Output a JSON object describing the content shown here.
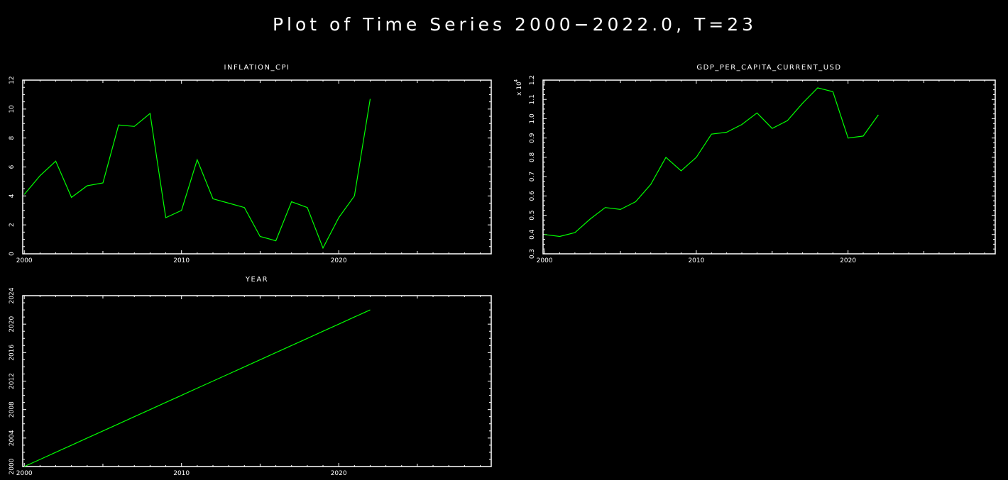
{
  "title": "Plot of Time Series 2000−2022.0, T=23",
  "chart_data": [
    {
      "type": "line",
      "title": "INFLATION_CPI",
      "xlabel": "",
      "ylabel": "",
      "xlim": [
        1999.9,
        2029.7
      ],
      "ylim": [
        0,
        12
      ],
      "xticks": [
        2000,
        2010,
        2020
      ],
      "yticks": [
        0,
        2,
        4,
        6,
        8,
        10,
        12
      ],
      "line_color": "#00ff00",
      "x": [
        2000,
        2001,
        2002,
        2003,
        2004,
        2005,
        2006,
        2007,
        2008,
        2009,
        2010,
        2011,
        2012,
        2013,
        2014,
        2015,
        2016,
        2017,
        2018,
        2019,
        2020,
        2021,
        2022
      ],
      "values": [
        4.1,
        5.4,
        6.4,
        3.9,
        4.7,
        4.9,
        8.9,
        8.8,
        9.7,
        2.5,
        3.0,
        6.5,
        3.8,
        3.5,
        3.2,
        1.2,
        0.9,
        3.6,
        3.2,
        0.4,
        2.5,
        4.0,
        10.7
      ]
    },
    {
      "type": "line",
      "title": "GDP_PER_CAPITA_CURRENT_USD",
      "xlabel": "",
      "ylabel": "",
      "multiplier": "x 10",
      "multiplier_exp": "4",
      "xlim": [
        1999.9,
        2029.7
      ],
      "ylim": [
        0.3,
        1.2
      ],
      "xticks": [
        2000,
        2010,
        2020
      ],
      "yticks": [
        0.3,
        0.4,
        0.5,
        0.6,
        0.7,
        0.8,
        0.9,
        1.0,
        1.1,
        1.2
      ],
      "line_color": "#00ff00",
      "x": [
        2000,
        2001,
        2002,
        2003,
        2004,
        2005,
        2006,
        2007,
        2008,
        2009,
        2010,
        2011,
        2012,
        2013,
        2014,
        2015,
        2016,
        2017,
        2018,
        2019,
        2020,
        2021,
        2022
      ],
      "values": [
        0.4,
        0.39,
        0.41,
        0.48,
        0.54,
        0.53,
        0.57,
        0.66,
        0.8,
        0.73,
        0.8,
        0.92,
        0.93,
        0.97,
        1.03,
        0.95,
        0.99,
        1.08,
        1.16,
        1.14,
        0.9,
        0.91,
        1.02
      ]
    },
    {
      "type": "line",
      "title": "YEAR",
      "xlabel": "",
      "ylabel": "",
      "xlim": [
        1999.9,
        2029.7
      ],
      "ylim": [
        2000,
        2024
      ],
      "xticks": [
        2000,
        2010,
        2020
      ],
      "yticks": [
        2000,
        2004,
        2008,
        2012,
        2016,
        2020,
        2024
      ],
      "line_color": "#00ff00",
      "x": [
        2000,
        2001,
        2002,
        2003,
        2004,
        2005,
        2006,
        2007,
        2008,
        2009,
        2010,
        2011,
        2012,
        2013,
        2014,
        2015,
        2016,
        2017,
        2018,
        2019,
        2020,
        2021,
        2022
      ],
      "values": [
        2000,
        2001,
        2002,
        2003,
        2004,
        2005,
        2006,
        2007,
        2008,
        2009,
        2010,
        2011,
        2012,
        2013,
        2014,
        2015,
        2016,
        2017,
        2018,
        2019,
        2020,
        2021,
        2022
      ]
    }
  ]
}
